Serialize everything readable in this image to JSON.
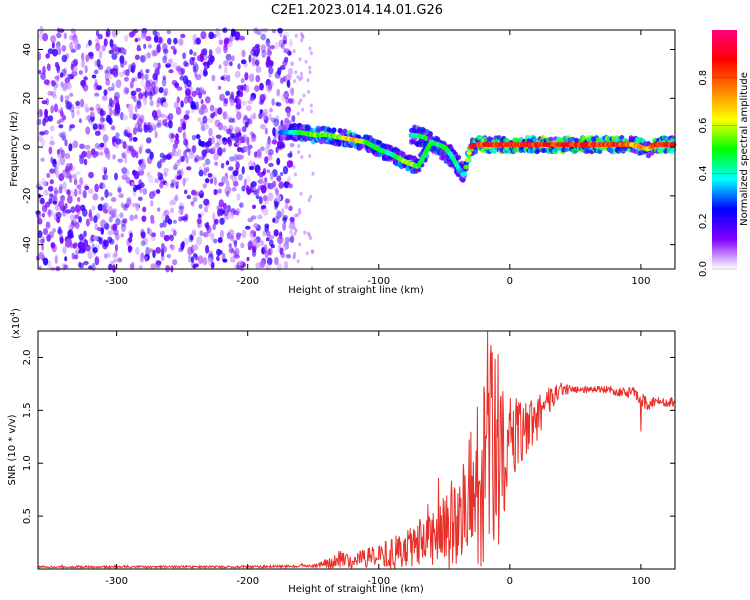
{
  "title": "C2E1.2023.014.14.01.G26",
  "chart_data": [
    {
      "type": "heatmap",
      "xlabel": "Height of straight line (km)",
      "ylabel": "Frequency (Hz)",
      "xlim": [
        -360,
        126
      ],
      "ylim": [
        -50,
        48
      ],
      "x_ticks": [
        -300,
        -200,
        -100,
        0,
        100
      ],
      "x_tick_labels": [
        "-300",
        "-200",
        "-100",
        "0",
        "100"
      ],
      "y_ticks": [
        -40,
        -20,
        0,
        20,
        40
      ],
      "y_tick_labels": [
        "-40",
        "-20",
        "0",
        "20",
        "40"
      ],
      "colorbar": {
        "label": "Normalized spectral amplitude",
        "range": [
          0,
          1
        ],
        "ticks": [
          0.0,
          0.2,
          0.4,
          0.6,
          0.8
        ],
        "tick_labels": [
          "0.0",
          "0.2",
          "0.4",
          "0.6",
          "0.8"
        ],
        "colors": [
          "#ffffff",
          "#8000ff",
          "#0000ff",
          "#00ffff",
          "#00ff00",
          "#ffff00",
          "#ff8000",
          "#ff0000",
          "#ff0080"
        ]
      },
      "noise_region": {
        "x": [
          -360,
          -165
        ],
        "amplitude": 0.15
      },
      "trace": {
        "x": [
          -175,
          -160,
          -150,
          -140,
          -130,
          -120,
          -110,
          -100,
          -90,
          -80,
          -70,
          -60,
          -50,
          -45,
          -40,
          -35,
          -30,
          -25,
          -20,
          -10,
          0,
          20,
          40,
          60,
          80,
          90,
          95,
          100,
          105,
          110,
          115,
          120,
          126
        ],
        "y": [
          6,
          6,
          5,
          5,
          4,
          3,
          2,
          -1,
          -3,
          -6,
          -8,
          2,
          0,
          -3,
          -8,
          -12,
          0,
          1,
          1,
          1,
          1,
          1,
          1,
          1,
          1,
          1,
          1,
          0,
          -1,
          1,
          1,
          1,
          1
        ],
        "amplitude": [
          0.3,
          0.5,
          0.6,
          0.55,
          0.6,
          0.75,
          0.55,
          0.5,
          0.45,
          0.6,
          0.55,
          0.5,
          0.5,
          0.45,
          0.4,
          0.35,
          0.85,
          0.9,
          0.9,
          0.9,
          0.9,
          0.9,
          0.9,
          0.9,
          0.9,
          0.85,
          0.7,
          0.8,
          0.6,
          0.85,
          0.9,
          0.9,
          0.9
        ]
      },
      "secondary_trace": {
        "x": [
          -75,
          -65,
          -55,
          -45,
          -35
        ],
        "y": [
          5,
          4,
          0,
          -4,
          -10
        ],
        "amplitude": [
          0.4,
          0.5,
          0.5,
          0.4,
          0.3
        ]
      }
    },
    {
      "type": "line",
      "xlabel": "Height of straight line (km)",
      "ylabel": "SNR (10 * v/v)",
      "y_multiplier": "(x10",
      "y_multiplier_exp": "4",
      "y_multiplier_close": ")",
      "xlim": [
        -360,
        126
      ],
      "ylim": [
        0,
        22500
      ],
      "x_ticks": [
        -300,
        -200,
        -100,
        0,
        100
      ],
      "x_tick_labels": [
        "-300",
        "-200",
        "-100",
        "0",
        "100"
      ],
      "y_ticks": [
        5000,
        10000,
        15000,
        20000
      ],
      "y_tick_labels": [
        "0.5",
        "1.0",
        "1.5",
        "2.0"
      ],
      "color": "#e8302a",
      "x": [
        -360,
        -300,
        -250,
        -200,
        -170,
        -150,
        -140,
        -130,
        -120,
        -110,
        -100,
        -90,
        -80,
        -70,
        -60,
        -50,
        -40,
        -30,
        -20,
        -15,
        -10,
        0,
        10,
        20,
        30,
        40,
        50,
        60,
        70,
        80,
        90,
        95,
        100,
        105,
        110,
        126
      ],
      "y": [
        200,
        200,
        200,
        200,
        250,
        300,
        500,
        900,
        700,
        1000,
        1200,
        1500,
        1800,
        2500,
        3000,
        3500,
        5000,
        6500,
        9000,
        11000,
        11500,
        12000,
        12500,
        14000,
        16000,
        17000,
        17000,
        17000,
        17000,
        16800,
        16600,
        16700,
        16200,
        15500,
        15800,
        15800
      ],
      "noise_fraction": [
        0.5,
        0.5,
        0.5,
        0.5,
        0.5,
        0.5,
        0.9,
        1.0,
        1.0,
        1.0,
        1.0,
        1.0,
        1.0,
        1.0,
        1.0,
        1.0,
        1.0,
        1.0,
        1.0,
        1.0,
        1.0,
        0.35,
        0.3,
        0.15,
        0.08,
        0.04,
        0.02,
        0.02,
        0.02,
        0.03,
        0.03,
        0.04,
        0.05,
        0.04,
        0.03,
        0.03
      ],
      "spikes": [
        {
          "x": -17,
          "y": 22500
        },
        {
          "x": 100,
          "y": 13000
        }
      ]
    }
  ]
}
